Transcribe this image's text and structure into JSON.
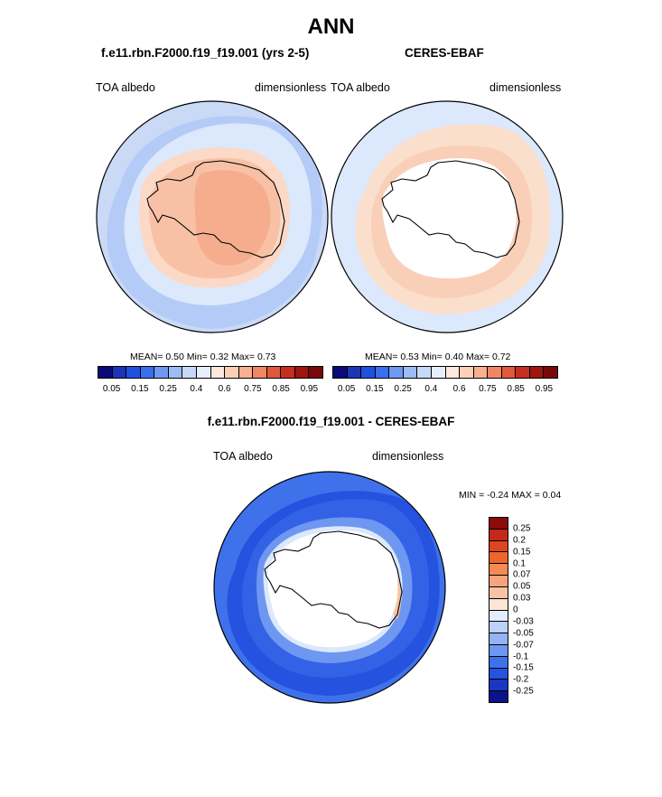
{
  "title": "ANN",
  "panels": {
    "model": {
      "title": "f.e11.rbn.F2000.f19_f19.001 (yrs 2-5)",
      "left_label": "TOA albedo",
      "right_label": "dimensionless",
      "stats": "MEAN=   0.50  Min=   0.32  Max=   0.73"
    },
    "obs": {
      "title": "CERES-EBAF",
      "left_label": "TOA albedo",
      "right_label": "dimensionless",
      "stats": "MEAN=   0.53  Min=   0.40  Max=   0.72"
    },
    "diff": {
      "title": "f.e11.rbn.F2000.f19_f19.001 - CERES-EBAF",
      "left_label": "TOA albedo",
      "right_label": "dimensionless",
      "stats": "MIN =  -0.24 MAX =   0.04"
    }
  },
  "colorbar_abs": {
    "tick_labels": [
      "0.05",
      "0.15",
      "0.25",
      "0.4",
      "0.6",
      "0.75",
      "0.85",
      "0.95"
    ],
    "colors": [
      "#0a0a7a",
      "#1c34b8",
      "#2050e0",
      "#3a6ef0",
      "#6e98f2",
      "#9dbcf5",
      "#c7d9f8",
      "#e6eefc",
      "#fde8dc",
      "#fcd0b6",
      "#f8b090",
      "#f08664",
      "#e2583c",
      "#c62f1f",
      "#a0150e",
      "#7a0808"
    ]
  },
  "colorbar_diff": {
    "labels": [
      "0.25",
      "0.2",
      "0.15",
      "0.1",
      "0.07",
      "0.05",
      "0.03",
      "0",
      "-0.03",
      "-0.05",
      "-0.07",
      "-0.1",
      "-0.15",
      "-0.2",
      "-0.25"
    ],
    "colors": [
      "#8b0a0a",
      "#c22a17",
      "#e0451f",
      "#f0652c",
      "#f58a55",
      "#f7a47e",
      "#f9c3a5",
      "#fde5d6",
      "#e4edfc",
      "#bcd1f7",
      "#93b3f3",
      "#6d97f0",
      "#3f72ea",
      "#2553e0",
      "#1a37c4",
      "#0c138a"
    ]
  }
}
